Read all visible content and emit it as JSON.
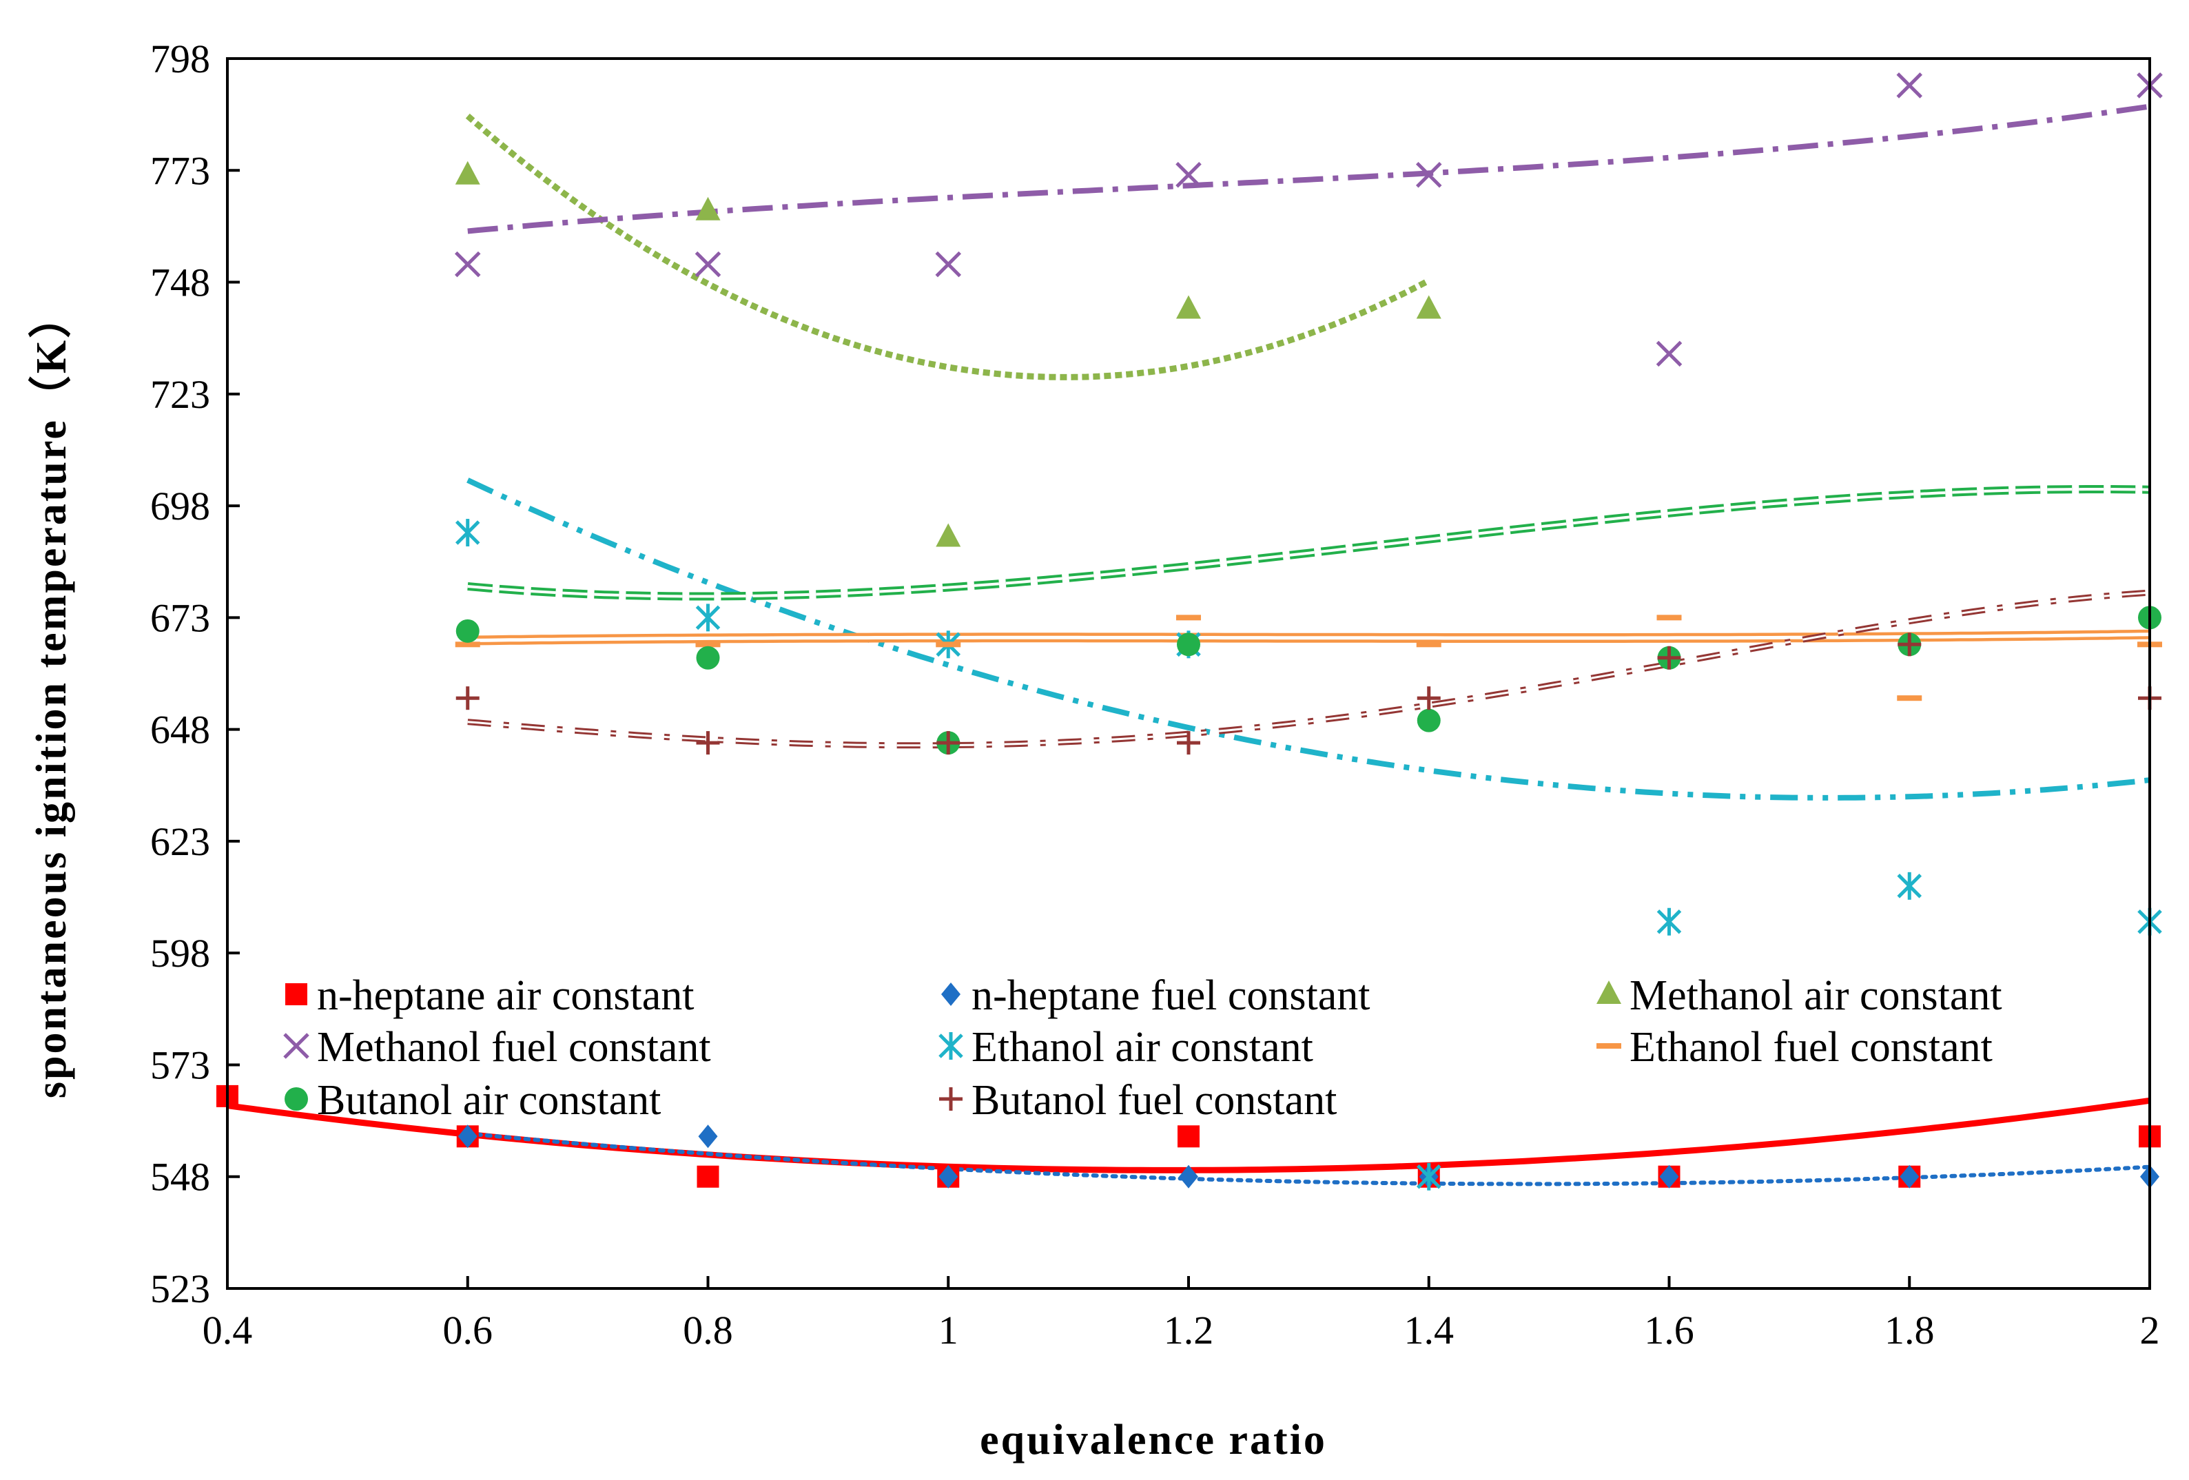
{
  "chart_data": {
    "type": "scatter",
    "title": "",
    "xlabel": "equivalence ratio",
    "ylabel": "spontaneous ignition temperature（K）",
    "xlim": [
      0.4,
      2.0
    ],
    "ylim": [
      523,
      798
    ],
    "xticks": [
      "0.4",
      "0.6",
      "0.8",
      "1",
      "1.2",
      "1.4",
      "1.6",
      "1.8",
      "2"
    ],
    "yticks": [
      "523",
      "548",
      "573",
      "598",
      "623",
      "648",
      "673",
      "698",
      "723",
      "748",
      "773",
      "798"
    ],
    "grid": false,
    "legend_position": "lower-left inside plot",
    "series": [
      {
        "name": "n-heptane air constant",
        "marker": "square",
        "color": "#ff0000",
        "points": [
          [
            0.4,
            566
          ],
          [
            0.6,
            557
          ],
          [
            0.8,
            548
          ],
          [
            1.0,
            548
          ],
          [
            1.2,
            557
          ],
          [
            1.4,
            548
          ],
          [
            1.6,
            548
          ],
          [
            1.8,
            548
          ],
          [
            2.0,
            557
          ]
        ],
        "trend": {
          "style": "solid-thick",
          "color": "#ff0000",
          "coef": [
            582.39,
            -55.61,
            23.46
          ],
          "xrange": [
            0.4,
            2.0
          ]
        }
      },
      {
        "name": "n-heptane fuel constant",
        "marker": "diamond",
        "color": "#1f6fc5",
        "points": [
          [
            0.6,
            557
          ],
          [
            0.8,
            557
          ],
          [
            1.0,
            548
          ],
          [
            1.2,
            548
          ],
          [
            1.4,
            548
          ],
          [
            1.6,
            548
          ],
          [
            1.8,
            548
          ],
          [
            2.0,
            548
          ]
        ],
        "trend": {
          "style": "dotted",
          "color": "#1f6fc5",
          "coef": [
            578.08,
            -42.73,
            14.39
          ],
          "xrange": [
            0.6,
            2.0
          ]
        }
      },
      {
        "name": "Methanol air constant",
        "marker": "triangle",
        "color": "#8db54b",
        "points": [
          [
            0.6,
            772
          ],
          [
            0.8,
            764
          ],
          [
            1.0,
            691
          ],
          [
            1.2,
            742
          ],
          [
            1.4,
            742
          ]
        ],
        "trend": {
          "style": "short-dash",
          "color": "#8db54b",
          "coef": [
            1011.0,
            -518.0,
            236.0
          ],
          "xrange": [
            0.6,
            1.4
          ]
        }
      },
      {
        "name": "Methanol fuel constant",
        "marker": "x",
        "color": "#8e5ca8",
        "points": [
          [
            0.6,
            752
          ],
          [
            0.8,
            752
          ],
          [
            1.0,
            752
          ],
          [
            1.2,
            772
          ],
          [
            1.4,
            772
          ],
          [
            1.6,
            732
          ],
          [
            1.8,
            792
          ],
          [
            2.0,
            792
          ]
        ],
        "trend": {
          "style": "dash-dot",
          "color": "#8e5ca8",
          "coef": [
            733.9,
            64.3,
            -43.8,
            12.5
          ],
          "xrange": [
            0.6,
            2.0
          ]
        }
      },
      {
        "name": "Ethanol air constant",
        "marker": "star",
        "color": "#1fb3c9",
        "points": [
          [
            0.6,
            692
          ],
          [
            0.8,
            673
          ],
          [
            1.0,
            667
          ],
          [
            1.2,
            667
          ],
          [
            1.4,
            548
          ],
          [
            1.6,
            605
          ],
          [
            1.8,
            613
          ],
          [
            2.0,
            605
          ]
        ],
        "trend": {
          "style": "dash-dot-dot",
          "color": "#1fb3c9",
          "coef": [
            798.94,
            -191.93,
            55.4
          ],
          "xrange": [
            0.6,
            2.0
          ]
        }
      },
      {
        "name": "Ethanol fuel constant",
        "marker": "dash",
        "color": "#f79646",
        "points": [
          [
            0.6,
            667
          ],
          [
            0.8,
            667
          ],
          [
            1.0,
            667
          ],
          [
            1.2,
            673
          ],
          [
            1.4,
            667
          ],
          [
            1.6,
            673
          ],
          [
            1.8,
            655
          ],
          [
            2.0,
            667
          ]
        ],
        "trend": {
          "style": "double-line",
          "color": "#f79646",
          "coef": [
            663.23,
            13.09,
            -10.54,
            2.75
          ],
          "xrange": [
            0.6,
            2.0
          ]
        }
      },
      {
        "name": "Butanol air constant",
        "marker": "circle",
        "color": "#22b04b",
        "points": [
          [
            0.6,
            670
          ],
          [
            0.8,
            664
          ],
          [
            1.0,
            645
          ],
          [
            1.2,
            667
          ],
          [
            1.4,
            650
          ],
          [
            1.6,
            664
          ],
          [
            1.8,
            667
          ],
          [
            2.0,
            673
          ]
        ],
        "trend": {
          "style": "double-dash",
          "color": "#22b04b",
          "coef": [
            726.68,
            -142.52,
            126.19,
            -30.6
          ],
          "xrange": [
            0.6,
            2.0
          ]
        }
      },
      {
        "name": "Butanol fuel constant",
        "marker": "plus",
        "color": "#943634",
        "points": [
          [
            0.6,
            655
          ],
          [
            0.8,
            645
          ],
          [
            1.0,
            645
          ],
          [
            1.2,
            645
          ],
          [
            1.4,
            655
          ],
          [
            1.6,
            664
          ],
          [
            1.8,
            667
          ],
          [
            2.0,
            655
          ]
        ],
        "trend": {
          "style": "dash-dot-outline",
          "color": "#943634",
          "coef": [
            646.7,
            68.82,
            -178.12,
            138.28,
            -31.22
          ],
          "xrange": [
            0.6,
            2.0
          ]
        }
      }
    ]
  }
}
